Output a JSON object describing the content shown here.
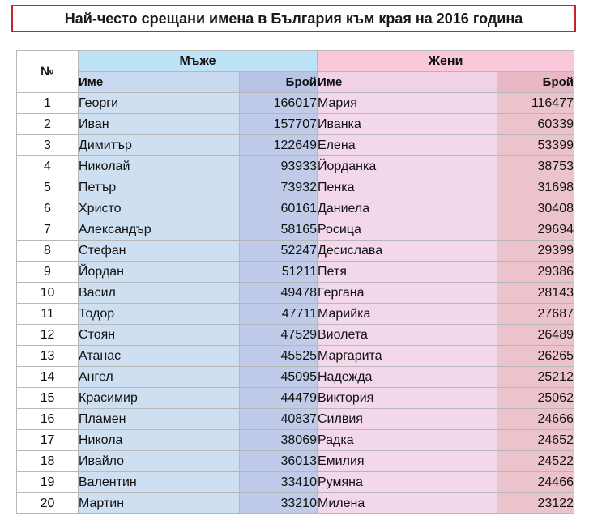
{
  "title": "Най-често срещани имена в България към края на 2016 година",
  "header": {
    "num": "№",
    "men_group": "Мъже",
    "women_group": "Жени",
    "name_col": "Име",
    "count_col": "Брой"
  },
  "rows": [
    {
      "n": "1",
      "male": "Георги",
      "male_count": "166017",
      "female": "Мария",
      "female_count": "116477"
    },
    {
      "n": "2",
      "male": "Иван",
      "male_count": "157707",
      "female": "Иванка",
      "female_count": "60339"
    },
    {
      "n": "3",
      "male": "Димитър",
      "male_count": "122649",
      "female": "Елена",
      "female_count": "53399"
    },
    {
      "n": "4",
      "male": "Николай",
      "male_count": "93933",
      "female": "Йорданка",
      "female_count": "38753"
    },
    {
      "n": "5",
      "male": "Петър",
      "male_count": "73932",
      "female": "Пенка",
      "female_count": "31698"
    },
    {
      "n": "6",
      "male": "Христо",
      "male_count": "60161",
      "female": "Даниела",
      "female_count": "30408"
    },
    {
      "n": "7",
      "male": "Александър",
      "male_count": "58165",
      "female": "Росица",
      "female_count": "29694"
    },
    {
      "n": "8",
      "male": "Стефан",
      "male_count": "52247",
      "female": "Десислава",
      "female_count": "29399"
    },
    {
      "n": "9",
      "male": "Йордан",
      "male_count": "51211",
      "female": "Петя",
      "female_count": "29386"
    },
    {
      "n": "10",
      "male": "Васил",
      "male_count": "49478",
      "female": "Гергана",
      "female_count": "28143"
    },
    {
      "n": "11",
      "male": "Тодор",
      "male_count": "47711",
      "female": "Марийка",
      "female_count": "27687"
    },
    {
      "n": "12",
      "male": "Стоян",
      "male_count": "47529",
      "female": "Виолета",
      "female_count": "26489"
    },
    {
      "n": "13",
      "male": "Атанас",
      "male_count": "45525",
      "female": "Маргарита",
      "female_count": "26265"
    },
    {
      "n": "14",
      "male": "Ангел",
      "male_count": "45095",
      "female": "Надежда",
      "female_count": "25212"
    },
    {
      "n": "15",
      "male": "Красимир",
      "male_count": "44479",
      "female": "Виктория",
      "female_count": "25062"
    },
    {
      "n": "16",
      "male": "Пламен",
      "male_count": "40837",
      "female": "Силвия",
      "female_count": "24666"
    },
    {
      "n": "17",
      "male": "Никола",
      "male_count": "38069",
      "female": "Радка",
      "female_count": "24652"
    },
    {
      "n": "18",
      "male": "Ивайло",
      "male_count": "36013",
      "female": "Емилия",
      "female_count": "24522"
    },
    {
      "n": "19",
      "male": "Валентин",
      "male_count": "33410",
      "female": "Румяна",
      "female_count": "24466"
    },
    {
      "n": "20",
      "male": "Мартин",
      "male_count": "33210",
      "female": "Милена",
      "female_count": "23122"
    }
  ]
}
